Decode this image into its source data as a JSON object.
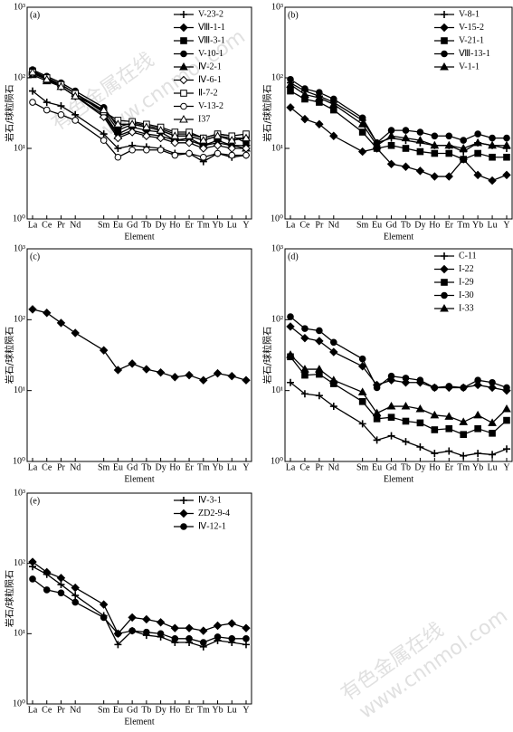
{
  "watermarks": [
    "有色金属在线",
    "www.cnnmol.com"
  ],
  "chart_data": [
    {
      "type": "line",
      "panel_label": "(a)",
      "xlabel": "Element",
      "ylabel": "岩石/球粒陨石",
      "yscale": "log",
      "legend": "upper right",
      "categories": [
        "La",
        "Ce",
        "Pr",
        "Nd",
        "Sm",
        "Eu",
        "Gd",
        "Tb",
        "Dy",
        "Ho",
        "Er",
        "Tm",
        "Yb",
        "Lu",
        "Y"
      ],
      "ylim": [
        1,
        1000
      ],
      "yticks": [
        {
          "value": 1,
          "label": "10⁰"
        },
        {
          "value": 10,
          "label": "10¹"
        },
        {
          "value": 100,
          "label": "10²"
        },
        {
          "value": 1000,
          "label": "10³"
        }
      ],
      "series": [
        {
          "name": "V-23-2",
          "color": "#000000",
          "marker": "plus",
          "values": [
            65,
            45,
            40,
            30,
            16,
            10,
            11,
            10.5,
            10,
            8.5,
            8.5,
            6.5,
            8.5,
            7.5,
            8
          ]
        },
        {
          "name": "Ⅷ-1-1",
          "color": "#000000",
          "marker": "diamond",
          "values": [
            120,
            95,
            80,
            60,
            32,
            16,
            20,
            18,
            17,
            13,
            14,
            11,
            13,
            11,
            11
          ]
        },
        {
          "name": "Ⅷ-3-1",
          "color": "#000000",
          "marker": "square",
          "values": [
            125,
            100,
            80,
            60,
            35,
            18,
            22,
            20,
            18,
            15,
            15,
            13,
            15,
            14,
            14
          ]
        },
        {
          "name": "V-10-1",
          "color": "#000000",
          "marker": "circle",
          "values": [
            130,
            105,
            85,
            65,
            38,
            20,
            23,
            21,
            19,
            16,
            16,
            14,
            16,
            15,
            12
          ]
        },
        {
          "name": "Ⅳ-2-1",
          "color": "#000000",
          "marker": "triangle",
          "values": [
            110,
            90,
            75,
            55,
            30,
            15,
            18,
            16,
            15,
            13,
            13,
            11,
            12,
            11,
            10
          ]
        },
        {
          "name": "Ⅳ-6-1",
          "color": "#000000",
          "marker": "open-diamond",
          "values": [
            115,
            95,
            75,
            55,
            28,
            14,
            17,
            15,
            14,
            12,
            12,
            10,
            11,
            10,
            10
          ]
        },
        {
          "name": "Ⅱ-7-2",
          "color": "#000000",
          "marker": "open-square",
          "values": [
            120,
            100,
            80,
            60,
            33,
            25,
            24,
            22,
            20,
            17,
            17,
            14,
            16,
            15,
            16
          ]
        },
        {
          "name": "V-13-2",
          "color": "#000000",
          "marker": "open-circle",
          "values": [
            45,
            35,
            30,
            25,
            13,
            7.5,
            9.5,
            9.5,
            9.5,
            8,
            8.5,
            7.5,
            8.5,
            8,
            8
          ]
        },
        {
          "name": "I37",
          "color": "#000000",
          "marker": "open-triangle",
          "values": [
            120,
            95,
            75,
            55,
            35,
            22,
            22,
            20,
            18,
            15,
            15,
            13,
            15,
            13,
            14
          ]
        }
      ]
    },
    {
      "type": "line",
      "panel_label": "(b)",
      "xlabel": "Element",
      "ylabel": "岩石/球粒陨石",
      "yscale": "log",
      "legend": "upper right",
      "categories": [
        "La",
        "Ce",
        "Pr",
        "Nd",
        "Sm",
        "Eu",
        "Gd",
        "Tb",
        "Dy",
        "Ho",
        "Er",
        "Tm",
        "Yb",
        "Lu",
        "Y"
      ],
      "ylim": [
        1,
        1000
      ],
      "yticks": [
        {
          "value": 1,
          "label": "10⁰"
        },
        {
          "value": 10,
          "label": "10¹"
        },
        {
          "value": 100,
          "label": "10²"
        },
        {
          "value": 1000,
          "label": "10³"
        }
      ],
      "series": [
        {
          "name": "V-8-1",
          "color": "#000000",
          "marker": "plus",
          "values": [
            85,
            65,
            55,
            45,
            25,
            12,
            14,
            13,
            12,
            11,
            11,
            9,
            12,
            11,
            10
          ]
        },
        {
          "name": "V-15-2",
          "color": "#000000",
          "marker": "diamond",
          "values": [
            38,
            26,
            22,
            15,
            9,
            10,
            6,
            5.5,
            4.8,
            4,
            4,
            7,
            4.2,
            3.5,
            4.2
          ]
        },
        {
          "name": "V-21-1",
          "color": "#000000",
          "marker": "square",
          "values": [
            65,
            50,
            45,
            35,
            17,
            10,
            11,
            10,
            9,
            8.5,
            8.5,
            7,
            8.5,
            7.5,
            7.5
          ]
        },
        {
          "name": "Ⅷ-13-1",
          "color": "#000000",
          "marker": "circle",
          "values": [
            95,
            70,
            62,
            50,
            27,
            12,
            18,
            18,
            17,
            15,
            15,
            13,
            16,
            14,
            14
          ]
        },
        {
          "name": "V-1-1",
          "color": "#000000",
          "marker": "triangle",
          "values": [
            80,
            58,
            52,
            42,
            22,
            11,
            15,
            14,
            13,
            11,
            11,
            10,
            12,
            11,
            11
          ]
        }
      ]
    },
    {
      "type": "line",
      "panel_label": "(c)",
      "xlabel": "Element",
      "ylabel": "岩石/球粒陨石",
      "yscale": "log",
      "categories": [
        "La",
        "Ce",
        "Pr",
        "Nd",
        "Sm",
        "Eu",
        "Gd",
        "Tb",
        "Dy",
        "Ho",
        "Er",
        "Tm",
        "Yb",
        "Lu",
        "Y"
      ],
      "ylim": [
        1,
        1000
      ],
      "yticks": [
        {
          "value": 1,
          "label": "10⁰"
        },
        {
          "value": 10,
          "label": "10¹"
        },
        {
          "value": 100,
          "label": "10²"
        },
        {
          "value": 1000,
          "label": "10³"
        }
      ],
      "color": "#000000",
      "values": [
        140,
        125,
        90,
        65,
        37,
        19.5,
        24,
        20,
        18,
        15.5,
        16.5,
        14,
        17.5,
        16,
        14
      ]
    },
    {
      "type": "line",
      "panel_label": "(d)",
      "xlabel": "Element",
      "ylabel": "岩石/球粒陨石",
      "yscale": "log",
      "legend": "upper right",
      "categories": [
        "La",
        "Ce",
        "Pr",
        "Nd",
        "Sm",
        "Eu",
        "Gd",
        "Tb",
        "Dy",
        "Ho",
        "Er",
        "Tm",
        "Yb",
        "Lu",
        "Y"
      ],
      "ylim": [
        1,
        1000
      ],
      "yticks": [
        {
          "value": 1,
          "label": "10⁰"
        },
        {
          "value": 10,
          "label": "10¹"
        },
        {
          "value": 100,
          "label": "10²"
        },
        {
          "value": 1000,
          "label": "10³"
        }
      ],
      "series": [
        {
          "name": "C-11",
          "color": "#000000",
          "marker": "plus",
          "values": [
            13,
            9,
            8.5,
            6,
            3.4,
            2,
            2.3,
            1.9,
            1.6,
            1.3,
            1.4,
            1.2,
            1.3,
            1.25,
            1.5
          ]
        },
        {
          "name": "I-22",
          "color": "#000000",
          "marker": "diamond",
          "values": [
            80,
            55,
            50,
            35,
            22,
            12,
            14,
            13,
            13,
            11,
            11,
            11,
            12,
            11,
            10
          ]
        },
        {
          "name": "I-29",
          "color": "#000000",
          "marker": "square",
          "values": [
            30,
            16.5,
            17,
            12.5,
            7,
            4,
            4.2,
            3.7,
            3.5,
            2.8,
            2.9,
            2.4,
            2.9,
            2.5,
            3.8
          ]
        },
        {
          "name": "I-30",
          "color": "#000000",
          "marker": "circle",
          "values": [
            110,
            75,
            70,
            48,
            28,
            11,
            16,
            15,
            14,
            11,
            11.5,
            11,
            14,
            13,
            11
          ]
        },
        {
          "name": "I-33",
          "color": "#000000",
          "marker": "triangle",
          "values": [
            32,
            20,
            20,
            14,
            9.5,
            4.8,
            6,
            6,
            5.5,
            4.5,
            4.3,
            3.6,
            4.5,
            3.5,
            5.5
          ]
        }
      ]
    },
    {
      "type": "line",
      "panel_label": "(e)",
      "xlabel": "Element",
      "ylabel": "岩石/球粒陨石",
      "yscale": "log",
      "legend": "upper right",
      "categories": [
        "La",
        "Ce",
        "Pr",
        "Nd",
        "Sm",
        "Eu",
        "Gd",
        "Tb",
        "Dy",
        "Ho",
        "Er",
        "Tm",
        "Yb",
        "Lu",
        "Y"
      ],
      "ylim": [
        1,
        1000
      ],
      "yticks": [
        {
          "value": 1,
          "label": "10⁰"
        },
        {
          "value": 10,
          "label": "10¹"
        },
        {
          "value": 100,
          "label": "10²"
        },
        {
          "value": 1000,
          "label": "10³"
        }
      ],
      "series": [
        {
          "name": "Ⅳ-3-1",
          "color": "#000000",
          "marker": "plus",
          "values": [
            90,
            70,
            50,
            35,
            18,
            7,
            11,
            9.5,
            9,
            7.5,
            7.5,
            6.5,
            8,
            7.5,
            7
          ]
        },
        {
          "name": "ZD2-9-4",
          "color": "#000000",
          "marker": "diamond",
          "values": [
            105,
            75,
            62,
            45,
            26,
            10,
            17,
            16,
            14.5,
            12,
            12,
            11,
            13,
            14,
            12
          ]
        },
        {
          "name": "Ⅳ-12-1",
          "color": "#000000",
          "marker": "circle",
          "values": [
            60,
            42,
            38,
            28,
            17,
            10,
            11,
            10.5,
            10,
            8.5,
            8.5,
            7.5,
            9,
            8.5,
            8.5
          ]
        }
      ]
    }
  ]
}
